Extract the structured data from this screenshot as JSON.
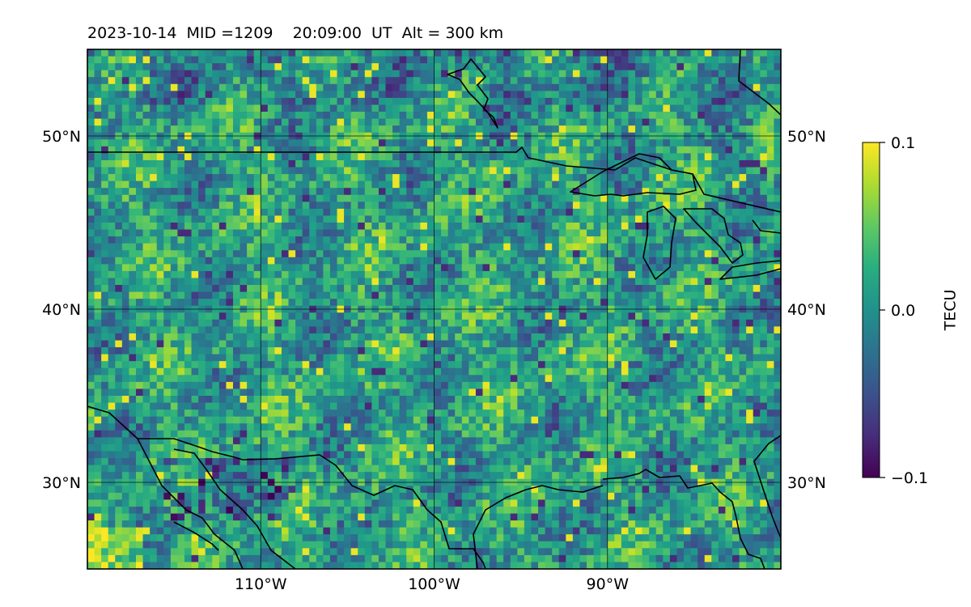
{
  "title": "2023-10-14  MID =1209    20:09:00  UT  Alt = 300 km",
  "map": {
    "lon_range": [
      -120,
      -80
    ],
    "lat_range": [
      25,
      55
    ],
    "gridlines": true,
    "lon_ticks": [
      {
        "value": -110,
        "label": "110°W"
      },
      {
        "value": -100,
        "label": "100°W"
      },
      {
        "value": -90,
        "label": "90°W"
      }
    ],
    "lat_ticks": [
      {
        "value": 30,
        "label": "30°N"
      },
      {
        "value": 40,
        "label": "40°N"
      },
      {
        "value": 50,
        "label": "50°N"
      }
    ],
    "features": [
      "coastlines",
      "country-borders"
    ],
    "colormap": "viridis"
  },
  "colorbar": {
    "label": "TECU",
    "min": -0.1,
    "max": 0.1,
    "ticks": [
      {
        "value": 0.1,
        "label": "0.1"
      },
      {
        "value": 0.0,
        "label": "0.0"
      },
      {
        "value": -0.1,
        "label": "−0.1"
      }
    ]
  },
  "chart_data": {
    "type": "heatmap",
    "title": "2023-10-14  MID =1209    20:09:00  UT  Alt = 300 km",
    "xlabel": "",
    "ylabel": "",
    "xlim": [
      -120,
      -80
    ],
    "ylim": [
      25,
      55
    ],
    "zlim": [
      -0.1,
      0.1
    ],
    "zlabel": "TECU",
    "colormap": "viridis",
    "grid": true
  }
}
